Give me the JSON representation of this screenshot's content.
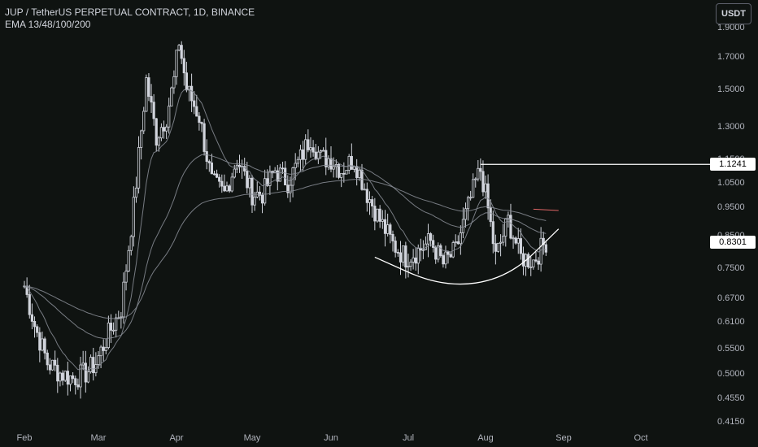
{
  "header": {
    "title": "JUP / TetherUS PERPETUAL CONTRACT, 1D, BINANCE",
    "indicator": "EMA 13/48/100/200"
  },
  "currency_button": "USDT",
  "price_tags": {
    "level_line": "1.1241",
    "last_price": "0.8301"
  },
  "colors": {
    "background": "#0f1311",
    "candle": "#d1d4dc",
    "ema": "#8a8e97",
    "line": "#ffffff",
    "axis_text": "#b2b5be"
  },
  "chart_data": {
    "type": "candlestick",
    "title": "JUP / TetherUS PERPETUAL CONTRACT, 1D, BINANCE",
    "x_tick_labels": [
      "Feb",
      "Mar",
      "Apr",
      "May",
      "Jun",
      "Jul",
      "Aug",
      "Sep",
      "Oct"
    ],
    "y_tick_labels": [
      "1.9000",
      "1.7000",
      "1.5000",
      "1.3000",
      "1.1500",
      "1.0500",
      "0.9500",
      "0.8500",
      "0.7500",
      "0.6700",
      "0.6100",
      "0.5500",
      "0.5000",
      "0.4550",
      "0.4150"
    ],
    "y_scale": "log",
    "ylim": [
      0.405,
      1.95
    ],
    "series": [
      {
        "name": "JUP/USDT",
        "close_path": [
          [
            "2024-02-01",
            0.7
          ],
          [
            "2024-02-05",
            0.6
          ],
          [
            "2024-02-10",
            0.52
          ],
          [
            "2024-02-15",
            0.5
          ],
          [
            "2024-02-20",
            0.49
          ],
          [
            "2024-02-25",
            0.5
          ],
          [
            "2024-02-29",
            0.52
          ],
          [
            "2024-03-05",
            0.58
          ],
          [
            "2024-03-10",
            0.64
          ],
          [
            "2024-03-15",
            0.95
          ],
          [
            "2024-03-18",
            1.28
          ],
          [
            "2024-03-20",
            1.55
          ],
          [
            "2024-03-24",
            1.25
          ],
          [
            "2024-03-28",
            1.35
          ],
          [
            "2024-03-31",
            1.55
          ],
          [
            "2024-04-02",
            1.8
          ],
          [
            "2024-04-05",
            1.5
          ],
          [
            "2024-04-10",
            1.35
          ],
          [
            "2024-04-15",
            1.05
          ],
          [
            "2024-04-20",
            1.0
          ],
          [
            "2024-04-25",
            1.15
          ],
          [
            "2024-05-01",
            1.0
          ],
          [
            "2024-05-05",
            1.0
          ],
          [
            "2024-05-10",
            1.1
          ],
          [
            "2024-05-15",
            1.05
          ],
          [
            "2024-05-20",
            1.15
          ],
          [
            "2024-05-24",
            1.25
          ],
          [
            "2024-05-28",
            1.15
          ],
          [
            "2024-06-01",
            1.15
          ],
          [
            "2024-06-05",
            1.1
          ],
          [
            "2024-06-10",
            1.15
          ],
          [
            "2024-06-15",
            1.0
          ],
          [
            "2024-06-20",
            0.9
          ],
          [
            "2024-06-25",
            0.82
          ],
          [
            "2024-06-30",
            0.78
          ],
          [
            "2024-07-05",
            0.8
          ],
          [
            "2024-07-10",
            0.83
          ],
          [
            "2024-07-15",
            0.76
          ],
          [
            "2024-07-20",
            0.8
          ],
          [
            "2024-07-25",
            0.95
          ],
          [
            "2024-07-28",
            1.05
          ],
          [
            "2024-07-30",
            1.1
          ],
          [
            "2024-08-01",
            1.0
          ],
          [
            "2024-08-05",
            0.78
          ],
          [
            "2024-08-10",
            0.9
          ],
          [
            "2024-08-15",
            0.78
          ],
          [
            "2024-08-20",
            0.77
          ],
          [
            "2024-08-25",
            0.83
          ]
        ]
      },
      {
        "name": "EMA 13",
        "smoothing": 13
      },
      {
        "name": "EMA 48",
        "smoothing": 48
      },
      {
        "name": "EMA 100",
        "smoothing": 100
      }
    ],
    "annotations": [
      {
        "type": "horizontal_ray",
        "price": 1.1241,
        "from": "2024-07-30"
      },
      {
        "type": "curve",
        "points": [
          [
            "2024-06-18",
            0.78
          ],
          [
            "2024-07-15",
            0.695
          ],
          [
            "2024-08-10",
            0.72
          ],
          [
            "2024-08-30",
            0.87
          ]
        ]
      },
      {
        "type": "segment",
        "points": [
          [
            "2024-08-20",
            0.94
          ],
          [
            "2024-08-30",
            0.935
          ]
        ]
      }
    ],
    "grid": false,
    "legend": "none"
  }
}
